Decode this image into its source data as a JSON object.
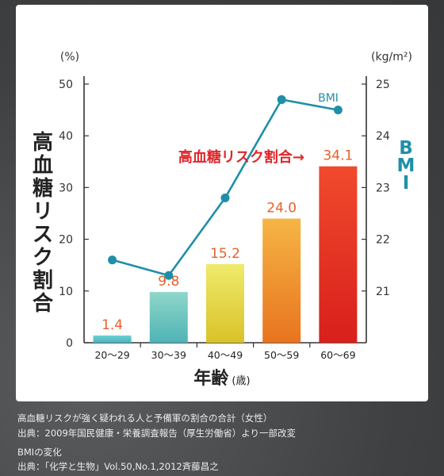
{
  "chart_data": {
    "type": "bar+line",
    "categories": [
      "20〜29",
      "30〜39",
      "40〜49",
      "50〜59",
      "60〜69"
    ],
    "series": [
      {
        "name": "高血糖リスク割合",
        "axis": "left",
        "kind": "bar",
        "values": [
          1.4,
          9.8,
          15.2,
          24.0,
          34.1
        ],
        "labels": [
          "1.4",
          "9.8",
          "15.2",
          "24.0",
          "34.1"
        ],
        "colors": [
          [
            "#6fd0d3",
            "#4bb2bd"
          ],
          [
            "#8fd6c8",
            "#4fb3b6"
          ],
          [
            "#f0ea6c",
            "#d9c228"
          ],
          [
            "#f6b545",
            "#e8731f"
          ],
          [
            "#f04a2c",
            "#d81f1c"
          ]
        ]
      },
      {
        "name": "BMI",
        "axis": "right",
        "kind": "line",
        "values": [
          21.6,
          21.3,
          22.8,
          24.7,
          24.5
        ],
        "color": "#1f8fa8"
      }
    ],
    "left_axis": {
      "unit": "(%)",
      "ticks": [
        "0",
        "10",
        "20",
        "30",
        "40",
        "50"
      ],
      "ylim": [
        0,
        50
      ],
      "label": "高血糖リスク割合"
    },
    "right_axis": {
      "unit": "(kg/m²)",
      "ticks": [
        "21",
        "22",
        "23",
        "24",
        "25"
      ],
      "ylim": [
        20,
        25
      ],
      "label": "BMI"
    },
    "x_axis": {
      "label": "年齢",
      "label_suffix": "(歳)"
    },
    "annotations": {
      "bmi_line_label": "BMI",
      "bar_series_label": "高血糖リスク割合→"
    }
  },
  "footnotes": [
    "高血糖リスクが強く疑われる人と予備軍の割合の合計（女性）",
    "出典：2009年国民健康・栄養調査報告（厚生労働省）より一部改変",
    "BMIの変化",
    "出典：「化学と生物」Vol.50,No.1,2012斉藤昌之"
  ]
}
